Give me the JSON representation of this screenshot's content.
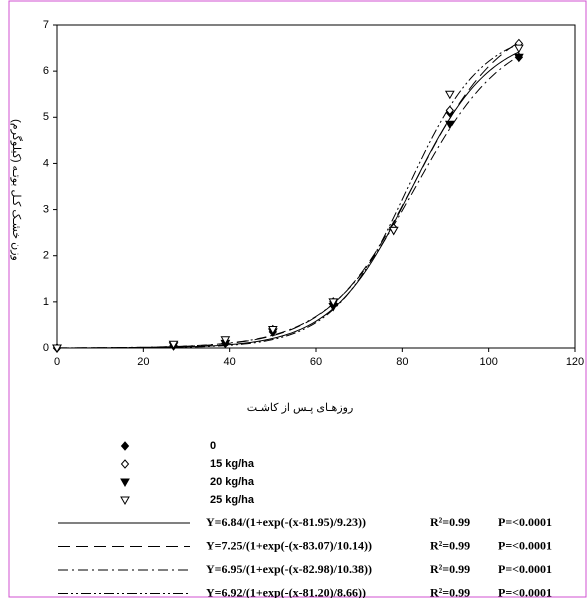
{
  "chart_data": {
    "type": "scatter",
    "xlabel": "روزهـای پـس از کاشـت",
    "ylabel": "وزن خشـک کـل بوتـه (کیلوگرم)",
    "xlim": [
      0,
      120
    ],
    "xticks": [
      0,
      20,
      40,
      60,
      80,
      100,
      120
    ],
    "ylim": [
      0,
      7
    ],
    "yticks": [
      0,
      1,
      2,
      3,
      4,
      5,
      6,
      7
    ],
    "series": [
      {
        "name": "0",
        "marker": "diamond-filled",
        "color": "#000000",
        "x": [
          0,
          27,
          39,
          50,
          64,
          78,
          91,
          107
        ],
        "values": [
          0,
          0.05,
          0.1,
          0.35,
          0.95,
          2.6,
          5.1,
          6.3
        ]
      },
      {
        "name": "15 kg/ha",
        "marker": "diamond-open",
        "color": "#000000",
        "x": [
          0,
          27,
          39,
          50,
          64,
          78,
          91,
          107
        ],
        "values": [
          0,
          0.05,
          0.15,
          0.4,
          1.0,
          2.6,
          5.15,
          6.6
        ]
      },
      {
        "name": "20 kg/ha",
        "marker": "triangle-filled",
        "color": "#000000",
        "x": [
          0,
          27,
          39,
          50,
          64,
          78,
          91,
          107
        ],
        "values": [
          0,
          0.05,
          0.1,
          0.35,
          0.9,
          2.55,
          4.85,
          6.3
        ]
      },
      {
        "name": "25 kg/ha",
        "marker": "triangle-open",
        "color": "#000000",
        "x": [
          0,
          27,
          39,
          50,
          64,
          78,
          91,
          107
        ],
        "values": [
          0,
          0.08,
          0.18,
          0.4,
          1.0,
          2.55,
          5.5,
          6.5
        ]
      }
    ],
    "fits": [
      {
        "equation": "Y=6.84/(1+exp(-(x-81.95)/9.23))",
        "r2": "R²=0.99",
        "p": "P=<0.0001",
        "dash": "solid"
      },
      {
        "equation": "Y=7.25/(1+exp(-(x-83.07)/10.14))",
        "r2": "R²=0.99",
        "p": "P=<0.0001",
        "dash": "12 6"
      },
      {
        "equation": "Y=6.95/(1+exp(-(x-82.98)/10.38))",
        "r2": "R²=0.99",
        "p": "P=<0.0001",
        "dash": "10 4 2 4"
      },
      {
        "equation": "Y=6.92/(1+exp(-(x-81.20)/8.66))",
        "r2": "R²=0.99",
        "p": "P=<0.0001",
        "dash": "10 3 2 3 2 3"
      }
    ]
  }
}
